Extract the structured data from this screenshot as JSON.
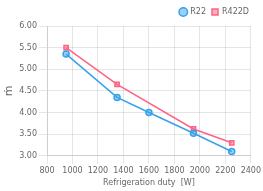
{
  "chart_data": {
    "type": "line",
    "xlabel": "Refrigeration duty  [W]",
    "ylabel": "ṁ",
    "series": [
      {
        "name": "R22",
        "x": [
          950,
          1350,
          1600,
          1950,
          2250
        ],
        "values": [
          5.35,
          4.35,
          4.0,
          3.52,
          3.1
        ],
        "marker": "circle"
      },
      {
        "name": "R422D",
        "x": [
          950,
          1350,
          1950,
          2250
        ],
        "values": [
          5.5,
          4.65,
          3.62,
          3.3
        ],
        "marker": "square"
      }
    ],
    "xlim": [
      800,
      2400
    ],
    "ylim": [
      3.0,
      6.0
    ],
    "xticks": [
      800,
      1000,
      1200,
      1400,
      1600,
      1800,
      2000,
      2200,
      2400
    ],
    "yticks": [
      {
        "value": 3.0,
        "label": "3.00"
      },
      {
        "value": 3.5,
        "label": "3.50"
      },
      {
        "value": 4.0,
        "label": "4.00"
      },
      {
        "value": 4.5,
        "label": "4.50"
      },
      {
        "value": 5.0,
        "label": "5.00"
      },
      {
        "value": 5.5,
        "label": "5.50"
      },
      {
        "value": 6.0,
        "label": "6.00"
      }
    ],
    "grid": true,
    "legend": "upper right"
  }
}
